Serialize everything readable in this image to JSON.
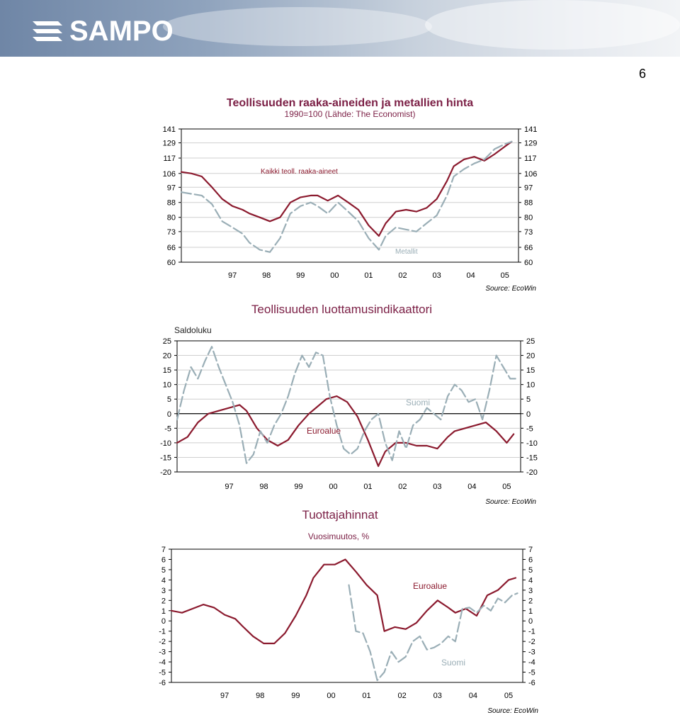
{
  "header": {
    "brand": "SAMPO",
    "page_number": "6"
  },
  "colors": {
    "euro": "#8b1a2e",
    "finland": "#9aaeb6",
    "title": "#7b1f45",
    "banner": "#7f93b0"
  },
  "chart_data": [
    {
      "type": "line",
      "title": "Teollisuuden raaka-aineiden ja metallien hinta",
      "subtitle": "1990=100 (Lähde: The Economist)",
      "ylabel": "",
      "yticks": [
        "141",
        "129",
        "117",
        "106",
        "97",
        "88",
        "80",
        "73",
        "66",
        "60"
      ],
      "ytick_values": [
        141,
        129,
        117,
        106,
        97,
        88,
        80,
        73,
        66,
        60
      ],
      "yscale": "log",
      "ylim": [
        60,
        141
      ],
      "xticks": [
        "97",
        "98",
        "99",
        "00",
        "01",
        "02",
        "03",
        "04",
        "05"
      ],
      "xlim": [
        1996.0,
        2005.9
      ],
      "grid": true,
      "source": "Source: EcoWin",
      "series": [
        {
          "name": "Kaikki teoll. raaka-aineet",
          "style": "solid",
          "x": [
            1996.0,
            1996.3,
            1996.6,
            1996.9,
            1997.2,
            1997.5,
            1997.8,
            1998.0,
            1998.3,
            1998.6,
            1998.9,
            1999.2,
            1999.5,
            1999.8,
            2000.0,
            2000.3,
            2000.6,
            2000.9,
            2001.2,
            2001.5,
            2001.8,
            2002.0,
            2002.3,
            2002.6,
            2002.9,
            2003.2,
            2003.5,
            2003.8,
            2004.0,
            2004.3,
            2004.6,
            2004.9,
            2005.2,
            2005.5,
            2005.7
          ],
          "y": [
            107,
            106,
            104,
            97,
            90,
            86,
            84,
            82,
            80,
            78,
            80,
            88,
            91,
            92,
            92,
            89,
            92,
            88,
            84,
            76,
            71,
            77,
            83,
            84,
            83,
            85,
            90,
            101,
            111,
            116,
            118,
            115,
            120,
            126,
            130
          ]
        },
        {
          "name": "Metallit",
          "style": "dashed",
          "x": [
            1996.0,
            1996.3,
            1996.6,
            1996.9,
            1997.2,
            1997.5,
            1997.8,
            1998.0,
            1998.3,
            1998.6,
            1998.9,
            1999.2,
            1999.5,
            1999.8,
            2000.0,
            2000.3,
            2000.6,
            2000.9,
            2001.2,
            2001.5,
            2001.8,
            2002.0,
            2002.3,
            2002.6,
            2002.9,
            2003.2,
            2003.5,
            2003.8,
            2004.0,
            2004.3,
            2004.6,
            2004.9,
            2005.2,
            2005.5,
            2005.7
          ],
          "y": [
            94,
            93,
            92,
            87,
            78,
            75,
            72,
            68,
            65,
            64,
            70,
            82,
            86,
            88,
            86,
            82,
            88,
            83,
            78,
            70,
            65,
            71,
            75,
            74,
            73,
            77,
            81,
            92,
            104,
            109,
            113,
            116,
            124,
            128,
            130
          ]
        }
      ]
    },
    {
      "type": "line",
      "title": "Teollisuuden luottamusindikaattori",
      "ylabel": "Saldoluku",
      "yticks": [
        "25",
        "20",
        "15",
        "10",
        "5",
        "0",
        "-5",
        "-10",
        "-15",
        "-20"
      ],
      "ytick_values": [
        25,
        20,
        15,
        10,
        5,
        0,
        -5,
        -10,
        -15,
        -20
      ],
      "ylim": [
        -20,
        25
      ],
      "xticks": [
        "97",
        "98",
        "99",
        "00",
        "01",
        "02",
        "03",
        "04",
        "05"
      ],
      "xlim": [
        1996.0,
        2005.9
      ],
      "grid": true,
      "source": "Source: EcoWin",
      "series": [
        {
          "name": "Euroalue",
          "style": "solid",
          "x": [
            1996.0,
            1996.3,
            1996.6,
            1996.9,
            1997.2,
            1997.5,
            1997.8,
            1998.0,
            1998.3,
            1998.6,
            1998.9,
            1999.2,
            1999.5,
            1999.8,
            2000.0,
            2000.3,
            2000.6,
            2000.9,
            2001.2,
            2001.5,
            2001.8,
            2002.0,
            2002.3,
            2002.6,
            2002.9,
            2003.2,
            2003.5,
            2003.8,
            2004.0,
            2004.3,
            2004.6,
            2004.9,
            2005.2,
            2005.5,
            2005.7
          ],
          "y": [
            -10,
            -8,
            -3,
            0,
            1,
            2,
            3,
            1,
            -5,
            -9,
            -11,
            -9,
            -4,
            0,
            2,
            5,
            6,
            4,
            -1,
            -9,
            -18,
            -13,
            -10,
            -10,
            -11,
            -11,
            -12,
            -8,
            -6,
            -5,
            -4,
            -3,
            -6,
            -10,
            -7
          ]
        },
        {
          "name": "Suomi",
          "style": "dashed",
          "x": [
            1996.0,
            1996.2,
            1996.4,
            1996.6,
            1996.8,
            1997.0,
            1997.2,
            1997.4,
            1997.6,
            1997.8,
            1998.0,
            1998.2,
            1998.4,
            1998.6,
            1998.8,
            1999.0,
            1999.2,
            1999.4,
            1999.6,
            1999.8,
            2000.0,
            2000.2,
            2000.4,
            2000.6,
            2000.8,
            2001.0,
            2001.2,
            2001.4,
            2001.6,
            2001.8,
            2002.0,
            2002.2,
            2002.4,
            2002.6,
            2002.8,
            2003.0,
            2003.2,
            2003.4,
            2003.6,
            2003.8,
            2004.0,
            2004.2,
            2004.4,
            2004.6,
            2004.8,
            2005.0,
            2005.2,
            2005.4,
            2005.6,
            2005.75
          ],
          "y": [
            -2,
            8,
            16,
            12,
            18,
            23,
            16,
            10,
            4,
            -4,
            -17,
            -14,
            -6,
            -10,
            -4,
            0,
            6,
            14,
            20,
            16,
            21,
            20,
            6,
            -4,
            -12,
            -14,
            -12,
            -6,
            -2,
            0,
            -10,
            -16,
            -6,
            -12,
            -4,
            -2,
            2,
            0,
            -2,
            6,
            10,
            8,
            4,
            5,
            -2,
            8,
            20,
            16,
            12,
            12
          ]
        }
      ]
    },
    {
      "type": "line",
      "title": "Tuottajahinnat",
      "subtitle": "Vuosimuutos, %",
      "yticks": [
        "7",
        "6",
        "5",
        "4",
        "3",
        "2",
        "1",
        "0",
        "-1",
        "-2",
        "-3",
        "-4",
        "-5",
        "-6"
      ],
      "ytick_values": [
        7,
        6,
        5,
        4,
        3,
        2,
        1,
        0,
        -1,
        -2,
        -3,
        -4,
        -5,
        -6
      ],
      "ylim": [
        -6,
        7
      ],
      "xticks": [
        "97",
        "98",
        "99",
        "00",
        "01",
        "02",
        "03",
        "04",
        "05"
      ],
      "xlim": [
        1996.0,
        2005.9
      ],
      "grid": false,
      "source": "Source: EcoWin",
      "series": [
        {
          "name": "Euroalue",
          "style": "solid",
          "x": [
            1996.0,
            1996.3,
            1996.6,
            1996.9,
            1997.2,
            1997.5,
            1997.8,
            1998.0,
            1998.3,
            1998.6,
            1998.9,
            1999.2,
            1999.5,
            1999.8,
            2000.0,
            2000.3,
            2000.6,
            2000.9,
            2001.2,
            2001.5,
            2001.8,
            2002.0,
            2002.3,
            2002.6,
            2002.9,
            2003.2,
            2003.5,
            2003.8,
            2004.0,
            2004.3,
            2004.6,
            2004.9,
            2005.2,
            2005.5,
            2005.7
          ],
          "y": [
            1.0,
            0.8,
            1.2,
            1.6,
            1.3,
            0.6,
            0.2,
            -0.5,
            -1.5,
            -2.2,
            -2.2,
            -1.2,
            0.5,
            2.5,
            4.2,
            5.5,
            5.5,
            6.0,
            4.8,
            3.5,
            2.5,
            -1.0,
            -0.6,
            -0.8,
            -0.2,
            1.0,
            2.0,
            1.3,
            0.8,
            1.2,
            0.5,
            2.5,
            3.0,
            4.0,
            4.2
          ]
        },
        {
          "name": "Suomi",
          "style": "dashed",
          "x": [
            2001.0,
            2001.2,
            2001.4,
            2001.6,
            2001.8,
            2002.0,
            2002.2,
            2002.4,
            2002.6,
            2002.8,
            2003.0,
            2003.2,
            2003.4,
            2003.6,
            2003.8,
            2004.0,
            2004.2,
            2004.4,
            2004.6,
            2004.8,
            2005.0,
            2005.2,
            2005.4,
            2005.6,
            2005.75
          ],
          "y": [
            3.5,
            -1.0,
            -1.2,
            -3.0,
            -5.8,
            -5.0,
            -3.0,
            -4.0,
            -3.5,
            -2.0,
            -1.5,
            -2.8,
            -2.6,
            -2.2,
            -1.5,
            -2.0,
            1.2,
            1.3,
            0.8,
            1.5,
            1.0,
            2.2,
            1.8,
            2.5,
            2.7
          ]
        }
      ]
    }
  ]
}
